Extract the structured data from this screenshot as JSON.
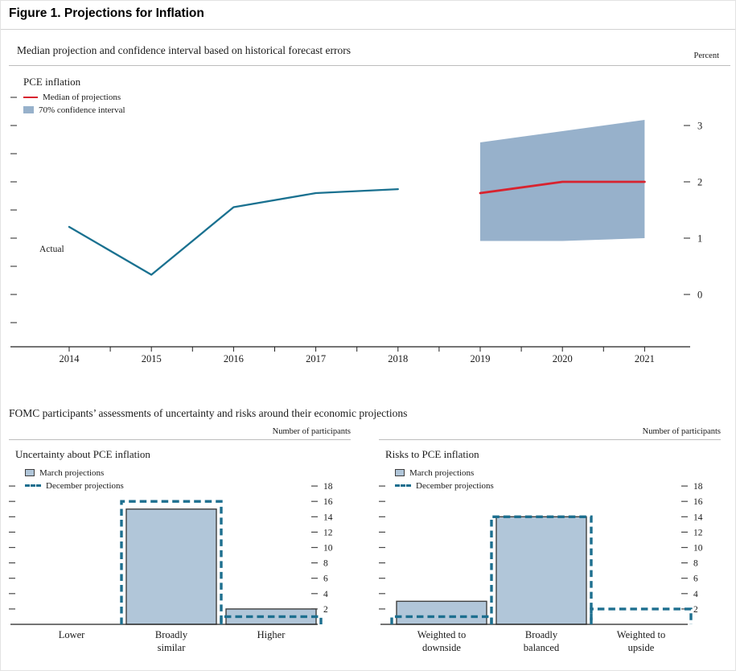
{
  "figure_title": "Figure 1. Projections for Inflation",
  "top_chart": {
    "subtitle": "Median projection and confidence interval based on historical forecast errors",
    "unit_label": "Percent",
    "series_label": "PCE inflation",
    "legend": {
      "median": "Median of projections",
      "interval": "70% confidence interval"
    },
    "actual_label": "Actual"
  },
  "bottom_section": {
    "title": "FOMC participants’ assessments of uncertainty and risks around their economic projections",
    "unit_label": "Number of participants",
    "legend": {
      "march": "March projections",
      "december": "December projections"
    }
  },
  "panels": {
    "uncertainty": {
      "heading": "Uncertainty about PCE inflation"
    },
    "risks": {
      "heading": "Risks to PCE inflation"
    }
  },
  "colors": {
    "actual_line": "#1a7190",
    "median_line": "#d8232f",
    "band_fill": "#97b1cb",
    "bar_fill": "#b1c6d9",
    "bar_border": "#3f3f3f",
    "december_dash": "#1d6f8f"
  },
  "chart_data": [
    {
      "id": "inflation-projection",
      "type": "line",
      "title": "Median projection and confidence interval based on historical forecast errors",
      "ylabel": "Percent",
      "x_ticks": [
        2014,
        2015,
        2016,
        2017,
        2018,
        2019,
        2020,
        2021
      ],
      "y_ticks": [
        0,
        1,
        2,
        3
      ],
      "ylim": [
        -1,
        3.5
      ],
      "series": [
        {
          "name": "Actual",
          "x": [
            2014,
            2015,
            2016,
            2017,
            2018
          ],
          "y": [
            1.2,
            0.35,
            1.55,
            1.8,
            1.87
          ]
        },
        {
          "name": "Median of projections",
          "x": [
            2019,
            2020,
            2021
          ],
          "y": [
            1.8,
            2.0,
            2.0
          ]
        }
      ],
      "band": {
        "name": "70% confidence interval",
        "x": [
          2019,
          2020,
          2021
        ],
        "upper": [
          2.7,
          2.9,
          3.1
        ],
        "lower": [
          0.95,
          0.95,
          1.0
        ]
      }
    },
    {
      "id": "uncertainty-pce",
      "type": "bar",
      "title": "Uncertainty about PCE inflation",
      "ylabel": "Number of participants",
      "categories": [
        "Lower",
        "Broadly similar",
        "Higher"
      ],
      "category_lines": [
        [
          "Lower"
        ],
        [
          "Broadly",
          "similar"
        ],
        [
          "Higher"
        ]
      ],
      "series": [
        {
          "name": "March projections",
          "values": [
            0,
            15,
            2
          ]
        },
        {
          "name": "December projections",
          "values": [
            0,
            16,
            1
          ]
        }
      ],
      "y_ticks": [
        2,
        4,
        6,
        8,
        10,
        12,
        14,
        16,
        18
      ],
      "ylim": [
        0,
        19
      ]
    },
    {
      "id": "risks-pce",
      "type": "bar",
      "title": "Risks to PCE inflation",
      "ylabel": "Number of participants",
      "categories": [
        "Weighted to downside",
        "Broadly balanced",
        "Weighted to upside"
      ],
      "category_lines": [
        [
          "Weighted to",
          "downside"
        ],
        [
          "Broadly",
          "balanced"
        ],
        [
          "Weighted to",
          "upside"
        ]
      ],
      "series": [
        {
          "name": "March projections",
          "values": [
            3,
            14,
            0
          ]
        },
        {
          "name": "December projections",
          "values": [
            1,
            14,
            2
          ]
        }
      ],
      "y_ticks": [
        2,
        4,
        6,
        8,
        10,
        12,
        14,
        16,
        18
      ],
      "ylim": [
        0,
        19
      ]
    }
  ]
}
